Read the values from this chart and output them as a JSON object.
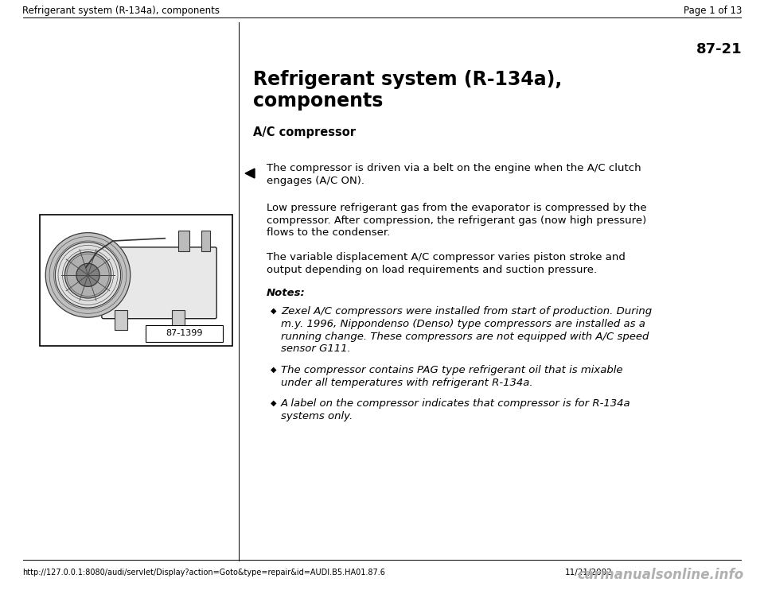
{
  "bg_color": "#ffffff",
  "header_left": "Refrigerant system (R-134a), components",
  "header_right": "Page 1 of 13",
  "page_number": "87-21",
  "title_line1": "Refrigerant system (R-134a),",
  "title_line2": "components",
  "section_heading": "A/C compressor",
  "bullet_line1": "The compressor is driven via a belt on the engine when the A/C clutch",
  "bullet_line2": "engages (A/C ON).",
  "para2_line1": "Low pressure refrigerant gas from the evaporator is compressed by the",
  "para2_line2": "compressor. After compression, the refrigerant gas (now high pressure)",
  "para2_line3": "flows to the condenser.",
  "para3_line1": "The variable displacement A/C compressor varies piston stroke and",
  "para3_line2": "output depending on load requirements and suction pressure.",
  "notes_heading": "Notes:",
  "note1_line1": "Zexel A/C compressors were installed from start of production. During",
  "note1_line2": "m.y. 1996, Nippondenso (Denso) type compressors are installed as a",
  "note1_line3": "running change. These compressors are not equipped with A/C speed",
  "note1_line4": "sensor G111.",
  "note2_line1": "The compressor contains PAG type refrigerant oil that is mixable",
  "note2_line2": "under all temperatures with refrigerant R-134a.",
  "note3_line1": "A label on the compressor indicates that compressor is for R-134a",
  "note3_line2": "systems only.",
  "image_label": "87-1399",
  "footer_url": "http://127.0.0.1:8080/audi/servlet/Display?action=Goto&type=repair&id=AUDI.B5.HA01.87.6",
  "footer_date": "11/21/2002",
  "footer_right": "carmanualsonline.info",
  "header_fontsize": 8.5,
  "title_fontsize": 17,
  "section_fontsize": 10.5,
  "body_fontsize": 9.5,
  "notes_fontsize": 9.5,
  "page_num_fontsize": 13
}
